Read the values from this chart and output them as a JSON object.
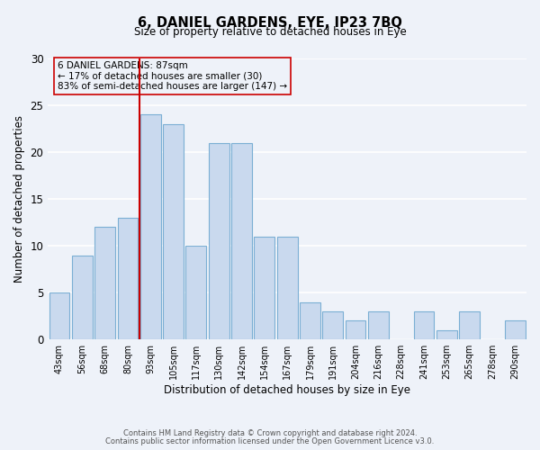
{
  "title": "6, DANIEL GARDENS, EYE, IP23 7BQ",
  "subtitle": "Size of property relative to detached houses in Eye",
  "xlabel": "Distribution of detached houses by size in Eye",
  "ylabel": "Number of detached properties",
  "bar_labels": [
    "43sqm",
    "56sqm",
    "68sqm",
    "80sqm",
    "93sqm",
    "105sqm",
    "117sqm",
    "130sqm",
    "142sqm",
    "154sqm",
    "167sqm",
    "179sqm",
    "191sqm",
    "204sqm",
    "216sqm",
    "228sqm",
    "241sqm",
    "253sqm",
    "265sqm",
    "278sqm",
    "290sqm"
  ],
  "bar_values": [
    5,
    9,
    12,
    13,
    24,
    23,
    10,
    21,
    21,
    11,
    11,
    4,
    3,
    2,
    3,
    0,
    3,
    1,
    3,
    0,
    2
  ],
  "bar_color": "#c9d9ee",
  "bar_edge_color": "#7bafd4",
  "vline_x": 3.5,
  "vline_color": "#cc0000",
  "ylim": [
    0,
    30
  ],
  "yticks": [
    0,
    5,
    10,
    15,
    20,
    25,
    30
  ],
  "annotation_text": "6 DANIEL GARDENS: 87sqm\n← 17% of detached houses are smaller (30)\n83% of semi-detached houses are larger (147) →",
  "footer_line1": "Contains HM Land Registry data © Crown copyright and database right 2024.",
  "footer_line2": "Contains public sector information licensed under the Open Government Licence v3.0.",
  "background_color": "#eef2f9",
  "grid_color": "#ffffff",
  "annotation_box_edge": "#cc0000"
}
